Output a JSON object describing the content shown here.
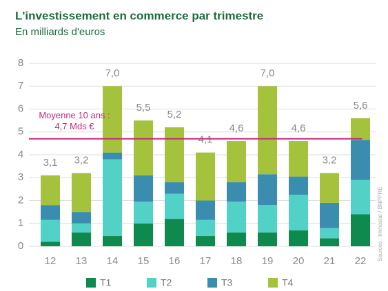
{
  "chart_data": {
    "type": "stacked_bar",
    "title": "L'investissement en commerce par trimestre",
    "subtitle": "En milliards d'euros",
    "source": "Sources : Immostat / BNPPRE",
    "categories": [
      "12",
      "13",
      "14",
      "15",
      "16",
      "17",
      "18",
      "19",
      "20",
      "21",
      "22"
    ],
    "series": [
      {
        "name": "T1",
        "color": "#0f8a4f",
        "values": [
          0.2,
          0.6,
          0.45,
          1.0,
          1.2,
          0.45,
          0.6,
          0.6,
          0.7,
          0.35,
          1.4
        ]
      },
      {
        "name": "T2",
        "color": "#52d1c6",
        "values": [
          0.95,
          0.4,
          3.35,
          0.95,
          1.1,
          0.7,
          1.35,
          1.2,
          1.55,
          0.45,
          1.5
        ]
      },
      {
        "name": "T3",
        "color": "#3b8db0",
        "values": [
          0.65,
          0.5,
          0.3,
          1.15,
          0.5,
          0.85,
          0.85,
          1.35,
          0.8,
          1.1,
          1.75
        ]
      },
      {
        "name": "T4",
        "color": "#a4c23b",
        "values": [
          1.3,
          1.7,
          2.9,
          2.4,
          2.4,
          2.1,
          1.8,
          3.85,
          1.55,
          1.3,
          0.95
        ]
      }
    ],
    "totals": [
      3.1,
      3.2,
      7.0,
      5.5,
      5.2,
      4.1,
      4.6,
      7.0,
      4.6,
      3.2,
      5.6
    ],
    "total_labels": [
      "3,1",
      "3,2",
      "7,0",
      "5,5",
      "5,2",
      "4,1",
      "4,6",
      "7,0",
      "4,6",
      "3,2",
      "5,6"
    ],
    "average": 4.7,
    "average_color": "#c42a7c",
    "average_annotation": [
      "Moyenne 10 ans :",
      "4,7 Mds €"
    ],
    "ylim": [
      0,
      8
    ],
    "yticks": [
      0,
      1,
      2,
      3,
      4,
      5,
      6,
      7,
      8
    ],
    "grid": true
  }
}
